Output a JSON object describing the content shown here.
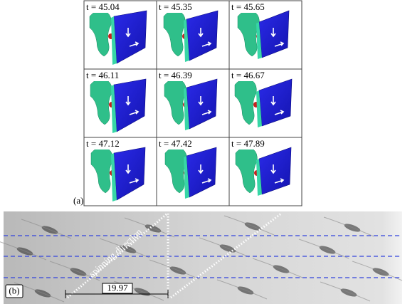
{
  "figure": {
    "panel_a": {
      "label": "(a)",
      "frames": [
        "t = 45.04",
        "t = 45.35",
        "t = 45.65",
        "t = 46.11",
        "t = 46.39",
        "t = 46.67",
        "t = 47.12",
        "t = 47.42",
        "t = 47.89"
      ]
    },
    "panel_b": {
      "label": "(b)",
      "annotation": "spinning direction",
      "distance_label": "19.97"
    }
  }
}
